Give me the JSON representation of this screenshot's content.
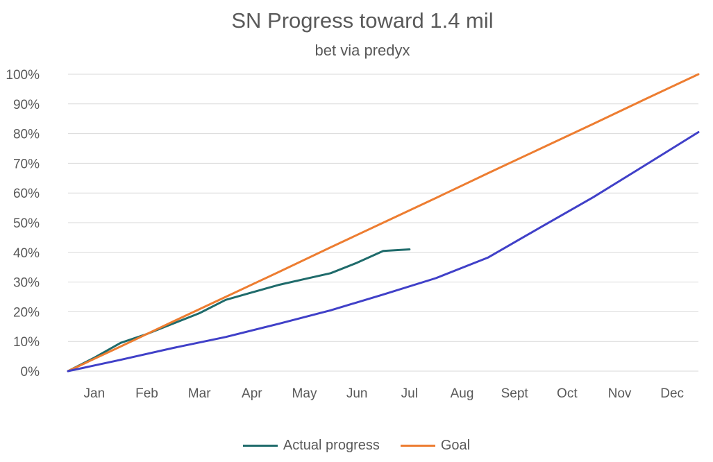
{
  "chart_data": {
    "type": "line",
    "title": "SN Progress toward 1.4 mil",
    "subtitle": "bet via predyx",
    "xlabel": "",
    "ylabel": "",
    "categories": [
      "Jan",
      "Feb",
      "Mar",
      "Apr",
      "May",
      "Jun",
      "Jul",
      "Aug",
      "Sept",
      "Oct",
      "Nov",
      "Dec"
    ],
    "yticks": [
      "0%",
      "10%",
      "20%",
      "30%",
      "40%",
      "50%",
      "60%",
      "70%",
      "80%",
      "90%",
      "100%"
    ],
    "ylim": [
      0,
      100
    ],
    "grid": true,
    "legend_position": "bottom",
    "series": [
      {
        "name": "Actual progress",
        "color": "#1f6b6b",
        "x": [
          0,
          0.5,
          1.0,
          1.5,
          2.0,
          2.5,
          3.0,
          3.5,
          4.0,
          4.5,
          5.0,
          5.5,
          6.0,
          6.5
        ],
        "values": [
          0,
          4.5,
          9.5,
          12.5,
          16,
          19.5,
          24,
          26.5,
          29,
          31,
          33,
          36.5,
          40.5,
          41
        ]
      },
      {
        "name": "Goal",
        "color": "#ed7d31",
        "x": [
          0,
          1,
          2,
          3,
          4,
          5,
          6,
          7,
          8,
          9,
          10,
          11,
          12
        ],
        "values": [
          0,
          8.3,
          16.7,
          25,
          33.3,
          41.7,
          50,
          58.3,
          66.7,
          75,
          83.3,
          91.7,
          100
        ]
      },
      {
        "name": "",
        "color": "#4040c8",
        "x": [
          0,
          1,
          2,
          3,
          4,
          5,
          6,
          7,
          8,
          9,
          10,
          11,
          12
        ],
        "values": [
          0,
          3.8,
          7.8,
          11.5,
          15.9,
          20.5,
          25.8,
          31.3,
          38.3,
          48.5,
          58.6,
          69.5,
          80.5
        ]
      }
    ]
  }
}
